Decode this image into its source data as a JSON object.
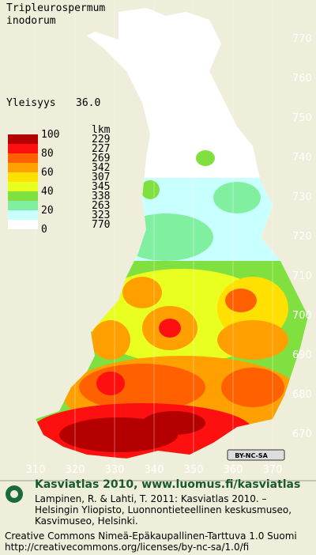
{
  "species_name": [
    "Tripleurospermum",
    "inodorum"
  ],
  "frequency": {
    "label": "Yleisyys",
    "value": "36.0"
  },
  "legend": {
    "count_header": "lkm",
    "levels": [
      "100",
      "80",
      "60",
      "40",
      "20",
      "0"
    ],
    "bands": [
      {
        "color": "#b40000",
        "count": "229"
      },
      {
        "color": "#ff1010",
        "count": "227"
      },
      {
        "color": "#ff6000",
        "count": "269"
      },
      {
        "color": "#ffa000",
        "count": "342"
      },
      {
        "color": "#ffe000",
        "count": "307"
      },
      {
        "color": "#e8ff20",
        "count": "345"
      },
      {
        "color": "#80e040",
        "count": "338"
      },
      {
        "color": "#80f0a0",
        "count": "263"
      },
      {
        "color": "#c8ffff",
        "count": "323"
      },
      {
        "color": "#ffffff",
        "count": "770"
      }
    ]
  },
  "y_axis_labels": [
    "770",
    "760",
    "750",
    "740",
    "730",
    "720",
    "710",
    "700",
    "690",
    "680",
    "670"
  ],
  "x_axis_labels": [
    "310",
    "320",
    "330",
    "340",
    "350",
    "360",
    "370"
  ],
  "license_badge": "BY-NC-SA",
  "footer": {
    "heading": "Kasviatlas 2010, www.luomus.fi/kasviatlas",
    "citation": [
      "Lampinen, R. & Lahti, T. 2011: Kasviatlas 2010. –",
      "Helsingin Yliopisto, Luonnontieteellinen keskusmuseo,",
      "Kasvimuseo, Helsinki."
    ],
    "license": [
      "Creative Commons Nimeä-Epäkaupallinen-Tarttuva 1.0 Suomi",
      "http://creativecommons.org/licenses/by-nc-sa/1.0/fi"
    ]
  }
}
